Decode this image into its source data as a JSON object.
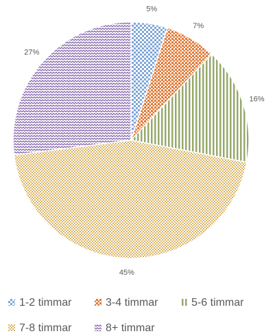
{
  "chart_data": {
    "type": "pie",
    "categories": [
      "1-2 timmar",
      "3-4 timmar",
      "5-6 timmar",
      "7-8 timmar",
      "8+ timmar"
    ],
    "values": [
      5,
      7,
      16,
      45,
      27
    ],
    "value_labels": [
      "5%",
      "7%",
      "16%",
      "45%",
      "27%"
    ],
    "colors": [
      "#7ea6d8",
      "#e07b39",
      "#97a86c",
      "#dab463",
      "#8060a8"
    ],
    "legend": "bottom"
  }
}
